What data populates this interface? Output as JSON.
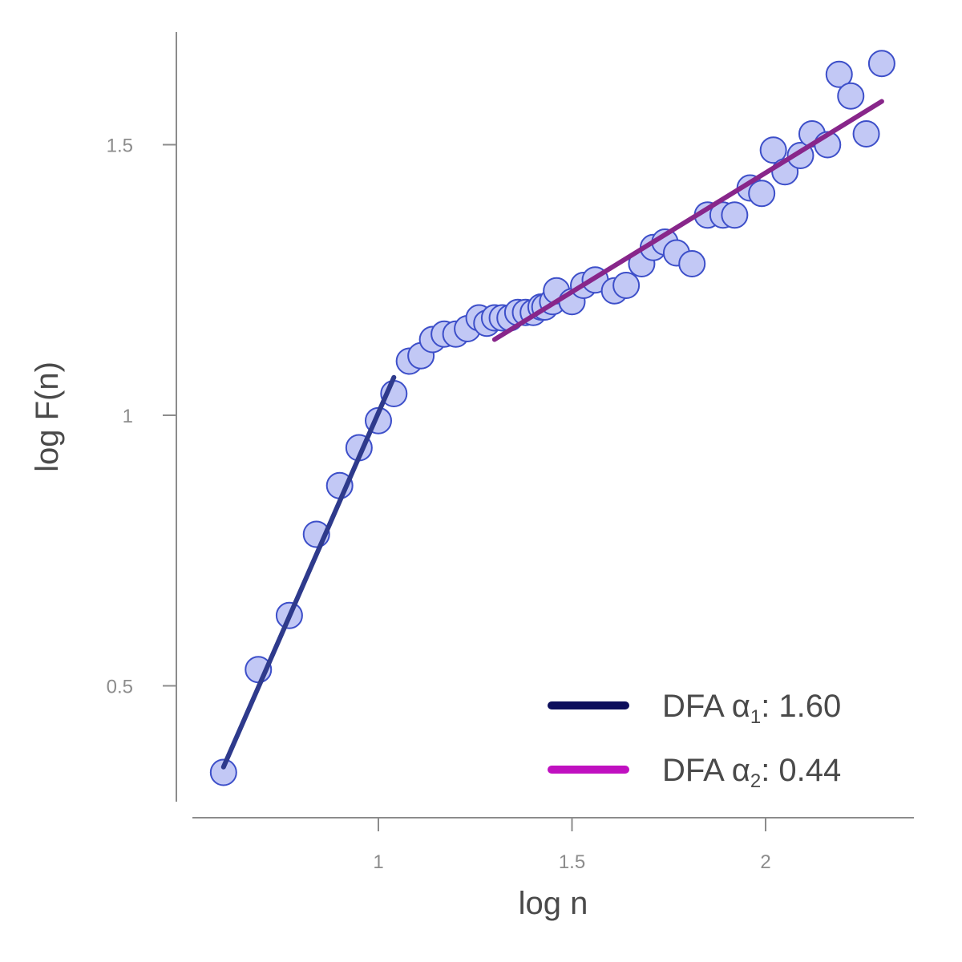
{
  "chart_data": {
    "type": "scatter",
    "title": "",
    "xlabel": "log n",
    "ylabel": "log F(n)",
    "xlim": [
      0.48,
      2.4
    ],
    "ylim": [
      0.28,
      1.7
    ],
    "xticks": [
      1,
      1.5,
      2
    ],
    "xtick_labels": [
      "1",
      "1.5",
      "2"
    ],
    "yticks": [
      0.5,
      1,
      1.5
    ],
    "ytick_labels": [
      "0.5",
      "1",
      "1.5"
    ],
    "grid": false,
    "legend_position": "bottom-right",
    "points": {
      "x": [
        0.6,
        0.69,
        0.77,
        0.84,
        0.9,
        0.95,
        1.0,
        1.04,
        1.08,
        1.11,
        1.14,
        1.17,
        1.2,
        1.23,
        1.26,
        1.28,
        1.3,
        1.32,
        1.34,
        1.36,
        1.38,
        1.4,
        1.42,
        1.43,
        1.45,
        1.46,
        1.5,
        1.53,
        1.56,
        1.61,
        1.64,
        1.68,
        1.71,
        1.74,
        1.77,
        1.81,
        1.85,
        1.89,
        1.92,
        1.96,
        1.99,
        2.02,
        2.05,
        2.09,
        2.12,
        2.16,
        2.19,
        2.22,
        2.26,
        2.3
      ],
      "y": [
        0.34,
        0.53,
        0.63,
        0.78,
        0.87,
        0.94,
        0.99,
        1.04,
        1.1,
        1.11,
        1.14,
        1.15,
        1.15,
        1.16,
        1.18,
        1.17,
        1.18,
        1.18,
        1.18,
        1.19,
        1.19,
        1.19,
        1.2,
        1.2,
        1.21,
        1.23,
        1.21,
        1.24,
        1.25,
        1.23,
        1.24,
        1.28,
        1.31,
        1.32,
        1.3,
        1.28,
        1.37,
        1.37,
        1.37,
        1.42,
        1.41,
        1.49,
        1.45,
        1.48,
        1.52,
        1.5,
        1.63,
        1.59,
        1.52,
        1.65
      ]
    },
    "series": [
      {
        "name": "DFA α1: 1.60",
        "alpha_symbol": "α",
        "subscript": "1",
        "value_text": ": 1.60",
        "color": "#0d0f5c",
        "line_color": "#2e3a8c",
        "x": [
          0.6,
          1.04
        ],
        "y": [
          0.35,
          1.07
        ]
      },
      {
        "name": "DFA α2: 0.44",
        "alpha_symbol": "α",
        "subscript": "2",
        "value_text": ": 0.44",
        "color": "#c010c0",
        "line_color": "#88268a",
        "x": [
          1.3,
          2.3
        ],
        "y": [
          1.14,
          1.58
        ]
      }
    ],
    "legend_prefix": "DFA ",
    "marker_fill": "#c2c8f5",
    "marker_edge": "#3d4fc9"
  }
}
